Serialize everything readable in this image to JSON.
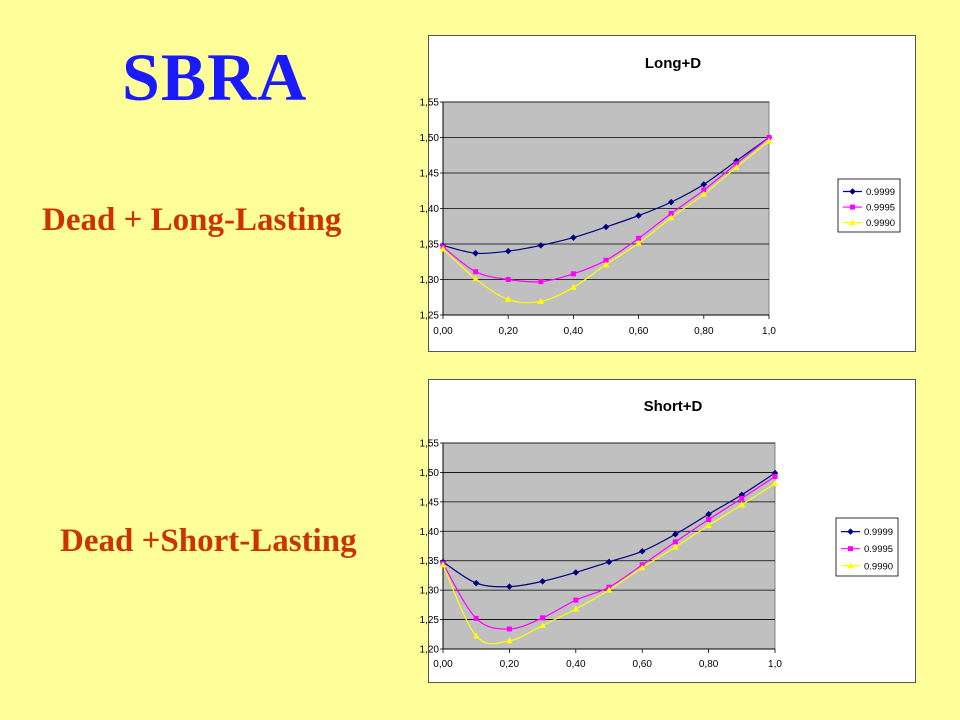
{
  "slide": {
    "title": "SBRA",
    "caption_long": "Dead + Long-Lasting",
    "caption_short": "Dead +Short-Lasting"
  },
  "colors": {
    "background": "#ffff99",
    "title": "#1a1aff",
    "caption": "#cc3300",
    "plot_area": "#c0c0c0",
    "series": [
      "#000080",
      "#ff00ff",
      "#ffff00"
    ]
  },
  "chart_data": [
    {
      "type": "line",
      "title": "Long+D",
      "x": [
        0.0,
        0.1,
        0.2,
        0.3,
        0.4,
        0.5,
        0.6,
        0.7,
        0.8,
        0.9,
        1.0
      ],
      "xticks": [
        "0,00",
        "0,20",
        "0,40",
        "0,60",
        "0,80",
        "1,0"
      ],
      "yticks": [
        "1,25",
        "1,30",
        "1,35",
        "1,40",
        "1,45",
        "1,50",
        "1,55"
      ],
      "ylim": [
        1.25,
        1.55
      ],
      "xlim": [
        0,
        1.0
      ],
      "grid": true,
      "legend_position": "right",
      "series": [
        {
          "name": "0.9999",
          "values": [
            1.348,
            1.337,
            1.34,
            1.348,
            1.359,
            1.374,
            1.39,
            1.409,
            1.434,
            1.467,
            1.5
          ]
        },
        {
          "name": "0.9995",
          "values": [
            1.346,
            1.311,
            1.3,
            1.297,
            1.308,
            1.327,
            1.358,
            1.393,
            1.426,
            1.463,
            1.5
          ]
        },
        {
          "name": "0.9990",
          "values": [
            1.343,
            1.301,
            1.272,
            1.269,
            1.289,
            1.321,
            1.351,
            1.387,
            1.42,
            1.458,
            1.495
          ]
        }
      ]
    },
    {
      "type": "line",
      "title": "Short+D",
      "x": [
        0.0,
        0.1,
        0.2,
        0.3,
        0.4,
        0.5,
        0.6,
        0.7,
        0.8,
        0.9,
        1.0
      ],
      "xticks": [
        "0,00",
        "0,20",
        "0,40",
        "0,60",
        "0,80",
        "1,0"
      ],
      "yticks": [
        "1,20",
        "1,25",
        "1,30",
        "1,35",
        "1,40",
        "1,45",
        "1,50",
        "1,55"
      ],
      "ylim": [
        1.2,
        1.55
      ],
      "xlim": [
        0,
        1.0
      ],
      "grid": true,
      "legend_position": "right",
      "series": [
        {
          "name": "0.9999",
          "values": [
            1.348,
            1.312,
            1.306,
            1.315,
            1.33,
            1.348,
            1.366,
            1.395,
            1.429,
            1.462,
            1.499
          ]
        },
        {
          "name": "0.9995",
          "values": [
            1.345,
            1.252,
            1.234,
            1.253,
            1.283,
            1.305,
            1.343,
            1.382,
            1.42,
            1.456,
            1.493
          ]
        },
        {
          "name": "0.9990",
          "values": [
            1.343,
            1.222,
            1.214,
            1.24,
            1.268,
            1.3,
            1.338,
            1.373,
            1.41,
            1.445,
            1.481
          ]
        }
      ]
    }
  ]
}
